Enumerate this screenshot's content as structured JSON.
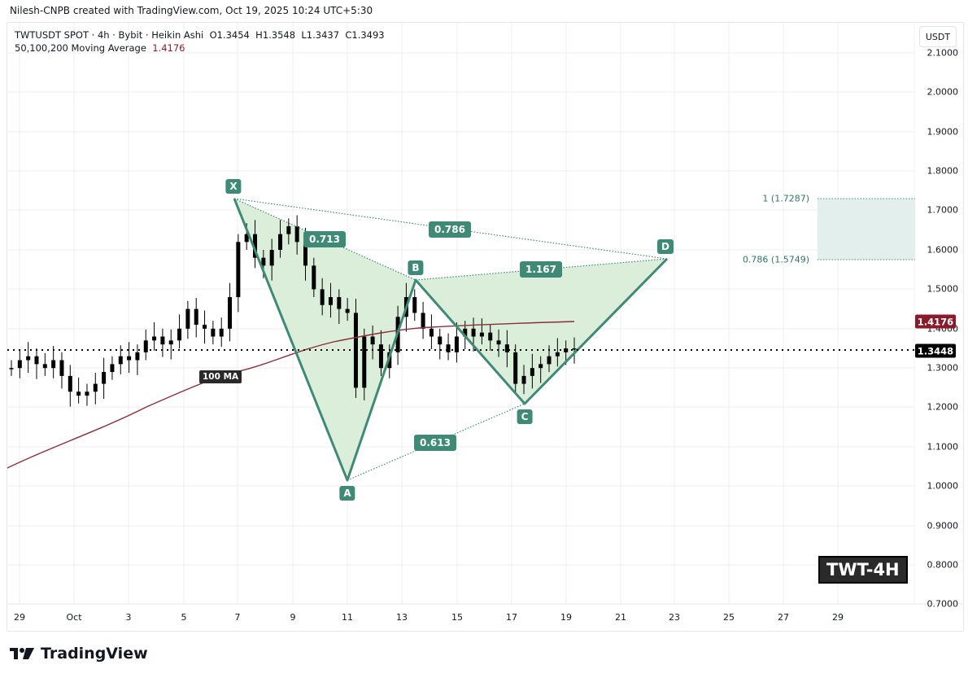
{
  "header": {
    "credit": "Nilesh-CNPB created with TradingView.com, Oct 19, 2025 10:24 UTC+5:30",
    "symbol_line": "TWTUSDT SPOT · 4h · Bybit · Heikin Ashi",
    "ohlc": {
      "open": "O1.3454",
      "high": "H1.3548",
      "low": "L1.3437",
      "close": "C1.3493"
    },
    "indicator_name": "50,100,200 Moving Average",
    "indicator_value": "1.4176"
  },
  "axis": {
    "currency_button": "USDT",
    "y_ticks": [
      "2.1000",
      "2.0000",
      "1.9000",
      "1.8000",
      "1.7000",
      "1.6000",
      "1.5000",
      "1.4000",
      "1.3000",
      "1.2000",
      "1.1000",
      "1.0000",
      "0.9000",
      "0.8000",
      "0.7000"
    ],
    "x_ticks": [
      "29",
      "Oct",
      "3",
      "5",
      "7",
      "9",
      "11",
      "13",
      "15",
      "17",
      "19",
      "21",
      "23",
      "25",
      "27",
      "29"
    ],
    "ma_price_tag": "1.4176",
    "last_price_tag": "1.3448"
  },
  "annotations": {
    "points": {
      "X": "X",
      "A": "A",
      "B": "B",
      "C": "C",
      "D": "D"
    },
    "ratios": {
      "xb": "0.713",
      "xd": "0.786",
      "bd": "1.167",
      "ac": "0.613"
    },
    "fib_levels": {
      "top": "1 (1.7287)",
      "bottom": "0.786 (1.5749)"
    },
    "ma_label": "100 MA",
    "watermark": "TWT-4H"
  },
  "footer": {
    "brand": "TradingView"
  },
  "colors": {
    "pattern_fill": "#d6ecd5",
    "pattern_stroke": "#3f8a77",
    "ma_line": "#8b2e3a",
    "ma_tag": "#8b1a2b",
    "last_price_tag": "#000000",
    "zone_fill": "#e3efec"
  },
  "chart_data": {
    "type": "candlestick",
    "title": "TWTUSDT SPOT · 4h · Bybit · Heikin Ashi",
    "xlabel": "",
    "ylabel": "USDT",
    "ylim": [
      0.7,
      2.1
    ],
    "x_range": [
      "Sep 29",
      "Oct 30"
    ],
    "grid": true,
    "last_price": 1.3448,
    "ohlc_last": {
      "open": 1.3454,
      "high": 1.3548,
      "low": 1.3437,
      "close": 1.3493
    },
    "moving_average": {
      "name": "100 MA (50,100,200 Moving Average)",
      "current": 1.4176,
      "approx_path": [
        {
          "x": "Sep 28",
          "y": 1.05
        },
        {
          "x": "Oct 2",
          "y": 1.12
        },
        {
          "x": "Oct 5",
          "y": 1.24
        },
        {
          "x": "Oct 7",
          "y": 1.31
        },
        {
          "x": "Oct 9",
          "y": 1.34
        },
        {
          "x": "Oct 11",
          "y": 1.37
        },
        {
          "x": "Oct 13",
          "y": 1.39
        },
        {
          "x": "Oct 15",
          "y": 1.405
        },
        {
          "x": "Oct 17",
          "y": 1.412
        },
        {
          "x": "Oct 19",
          "y": 1.4176
        }
      ]
    },
    "harmonic_pattern": {
      "points": [
        {
          "name": "X",
          "date": "Oct 7",
          "price": 1.728
        },
        {
          "name": "A",
          "date": "Oct 11",
          "price": 1.01
        },
        {
          "name": "B",
          "date": "Oct 13.5",
          "price": 1.52
        },
        {
          "name": "C",
          "date": "Oct 17.5",
          "price": 1.21
        },
        {
          "name": "D",
          "date": "Oct 22.7",
          "price": 1.575
        }
      ],
      "ratios": [
        {
          "legs": "XA-B",
          "value": 0.713
        },
        {
          "legs": "XA-D",
          "value": 0.786
        },
        {
          "legs": "BC-D",
          "value": 1.167
        },
        {
          "legs": "AB-C",
          "value": 0.613
        }
      ]
    },
    "target_zone": {
      "upper": {
        "label": "1",
        "price": 1.7287
      },
      "lower": {
        "label": "0.786",
        "price": 1.5749
      }
    },
    "approx_candles_close": [
      1.3,
      1.32,
      1.33,
      1.31,
      1.3,
      1.32,
      1.28,
      1.24,
      1.23,
      1.24,
      1.26,
      1.29,
      1.31,
      1.33,
      1.32,
      1.34,
      1.37,
      1.38,
      1.36,
      1.37,
      1.4,
      1.45,
      1.41,
      1.4,
      1.38,
      1.4,
      1.48,
      1.62,
      1.64,
      1.58,
      1.56,
      1.6,
      1.64,
      1.66,
      1.62,
      1.56,
      1.5,
      1.46,
      1.48,
      1.45,
      1.44,
      1.25,
      1.38,
      1.36,
      1.3,
      1.34,
      1.43,
      1.48,
      1.44,
      1.4,
      1.38,
      1.36,
      1.34,
      1.38,
      1.4,
      1.38,
      1.39,
      1.37,
      1.36,
      1.34,
      1.26,
      1.28,
      1.3,
      1.31,
      1.33,
      1.34,
      1.35,
      1.3493
    ]
  }
}
